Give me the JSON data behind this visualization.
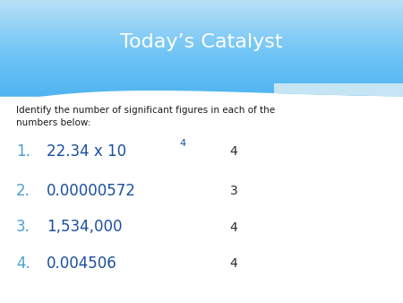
{
  "title": "Today’s Catalyst",
  "title_color": "#ffffff",
  "title_fontsize": 16,
  "body_bg": "#ffffff",
  "subtitle": "Identify the number of significant figures in each of the\nnumbers below:",
  "subtitle_color": "#1a1a1a",
  "subtitle_fontsize": 7.5,
  "items": [
    {
      "num": "1.",
      "text": "22.34 x 10",
      "superscript": "4",
      "answer": "4"
    },
    {
      "num": "2.",
      "text": "0.00000572",
      "superscript": "",
      "answer": "3"
    },
    {
      "num": "3.",
      "text": "1,534,000",
      "superscript": "",
      "answer": "4"
    },
    {
      "num": "4.",
      "text": "0.004506",
      "superscript": "",
      "answer": "4"
    }
  ],
  "item_num_color": "#4a9fd4",
  "item_text_color": "#1a4f9e",
  "item_answer_color": "#2a2a2a",
  "item_fontsize": 12,
  "answer_fontsize": 10,
  "header_top": "#4eb3f0",
  "header_mid": "#74c6f5",
  "header_bot": "#b8dff7",
  "wave_right_blue": "#c5e5f5"
}
